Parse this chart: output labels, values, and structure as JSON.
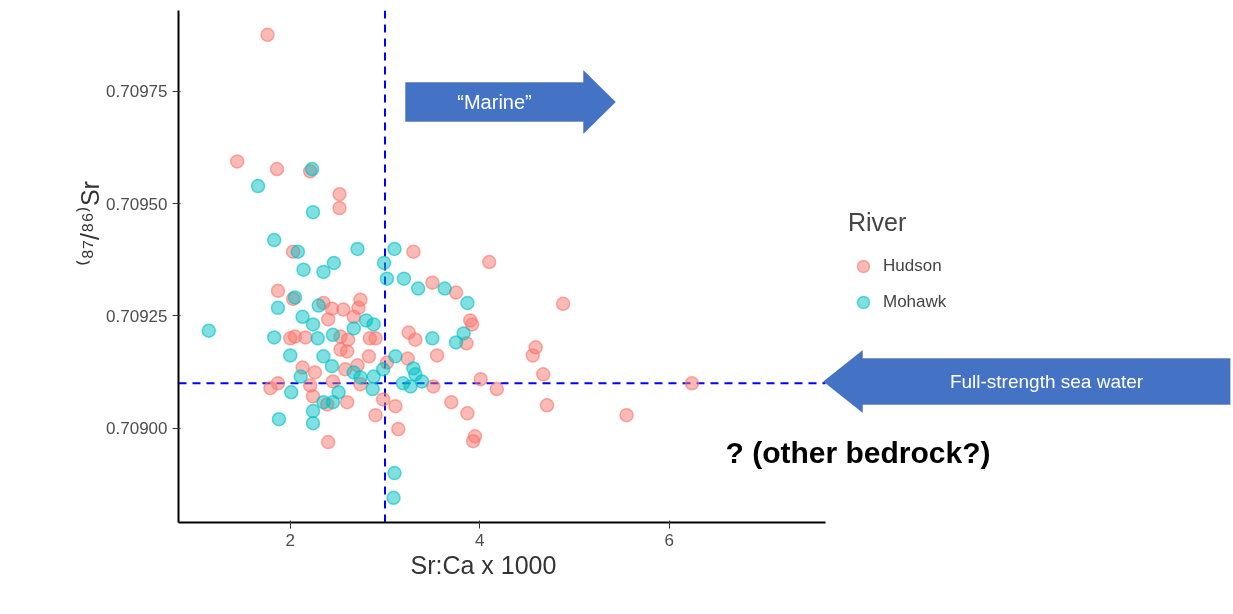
{
  "chart_data": {
    "type": "scatter",
    "xlabel": "Sr:Ca x 1000",
    "ylabel": "⁽⁸⁷/⁸⁶⁾Sr",
    "legend_title": "River",
    "xlim": [
      0.82,
      7.65
    ],
    "ylim": [
      0.70879,
      0.70993
    ],
    "xticks": [
      2,
      4,
      6
    ],
    "yticks": [
      {
        "value": 0.709,
        "label": "0.70900"
      },
      {
        "value": 0.70925,
        "label": "0.70925"
      },
      {
        "value": 0.7095,
        "label": "0.70950"
      },
      {
        "value": 0.70975,
        "label": "0.70975"
      }
    ],
    "grid": false,
    "legend": "right",
    "marker": "circle",
    "ref_lines": [
      {
        "axis": "x",
        "value": 3.0,
        "color": "#0000ff",
        "line_style": "dashed"
      },
      {
        "axis": "y",
        "value": 0.7091,
        "color": "#0000ff",
        "line_style": "dashed"
      }
    ],
    "annotations": [
      "“Marine”",
      "Full-strength sea water",
      "? (other bedrock?)"
    ],
    "series": [
      {
        "name": "Hudson",
        "color": "#f8766d",
        "x": [
          1.76,
          1.44,
          1.86,
          2.21,
          2.52,
          2.52,
          2.03,
          3.3,
          4.1,
          1.87,
          2.03,
          2.35,
          2.44,
          2.56,
          2.74,
          2.72,
          2.67,
          2.4,
          2.0,
          2.05,
          2.16,
          2.53,
          2.61,
          2.53,
          2.6,
          2.84,
          2.9,
          2.83,
          3.25,
          3.32,
          3.55,
          3.5,
          3.75,
          3.9,
          3.92,
          3.86,
          3.24,
          3.02,
          2.13,
          2.26,
          2.71,
          2.58,
          1.79,
          1.87,
          2.21,
          2.45,
          2.74,
          2.24,
          2.39,
          2.6,
          2.98,
          3.11,
          3.14,
          2.9,
          2.4,
          3.51,
          3.7,
          3.87,
          3.93,
          3.95,
          4.01,
          4.18,
          4.88,
          4.59,
          4.56,
          4.67,
          4.71,
          5.55,
          6.24
        ],
        "values": [
          0.709876,
          0.709594,
          0.709577,
          0.709572,
          0.709521,
          0.70949,
          0.709393,
          0.709393,
          0.70937,
          0.709306,
          0.709288,
          0.709279,
          0.709266,
          0.709264,
          0.709286,
          0.709268,
          0.709248,
          0.709242,
          0.7092,
          0.709204,
          0.709202,
          0.709204,
          0.709197,
          0.709175,
          0.709171,
          0.7092,
          0.7092,
          0.70916,
          0.709213,
          0.709197,
          0.709162,
          0.709324,
          0.709302,
          0.70924,
          0.709231,
          0.709189,
          0.709155,
          0.709146,
          0.709135,
          0.709124,
          0.70914,
          0.709131,
          0.709089,
          0.7091,
          0.709095,
          0.709104,
          0.709098,
          0.709071,
          0.709053,
          0.709058,
          0.709064,
          0.709049,
          0.708998,
          0.709029,
          0.708969,
          0.709093,
          0.709058,
          0.709033,
          0.708971,
          0.708982,
          0.709109,
          0.709087,
          0.709277,
          0.70918,
          0.709162,
          0.70912,
          0.709051,
          0.709029,
          0.7091
        ]
      },
      {
        "name": "Mohawk",
        "color": "#00bfc4",
        "x": [
          2.23,
          1.66,
          2.24,
          1.83,
          2.08,
          2.71,
          3.1,
          2.99,
          2.46,
          2.14,
          2.35,
          3.02,
          3.2,
          3.35,
          3.63,
          3.87,
          2.05,
          1.87,
          2.13,
          2.3,
          2.24,
          1.14,
          1.81,
          1.83,
          2.29,
          2.45,
          2.67,
          2.8,
          2.87,
          2.88,
          3.83,
          3.75,
          3.5,
          2.0,
          2.35,
          2.44,
          2.67,
          2.74,
          2.88,
          2.98,
          3.11,
          3.3,
          3.32,
          3.39,
          3.19,
          3.27,
          2.87,
          2.11,
          2.01,
          2.51,
          2.45,
          2.35,
          2.24,
          1.88,
          2.24,
          3.1,
          3.09
        ],
        "values": [
          0.709577,
          0.709539,
          0.709481,
          0.709419,
          0.709393,
          0.709399,
          0.709399,
          0.709368,
          0.709368,
          0.709353,
          0.709348,
          0.709333,
          0.709333,
          0.709311,
          0.709311,
          0.709279,
          0.709291,
          0.709268,
          0.709248,
          0.709273,
          0.709231,
          0.709217,
          null,
          0.709202,
          0.7092,
          0.709208,
          0.709222,
          0.70924,
          null,
          0.709231,
          0.709211,
          0.709191,
          0.7092,
          0.709162,
          0.70916,
          0.709138,
          0.709124,
          0.709113,
          0.709115,
          0.709131,
          0.70916,
          0.709133,
          0.70912,
          0.709104,
          0.7091,
          0.709093,
          0.709087,
          0.709115,
          0.70908,
          0.70908,
          0.709058,
          0.709058,
          0.709038,
          0.70902,
          0.709011,
          0.7089,
          0.708845
        ]
      }
    ]
  }
}
